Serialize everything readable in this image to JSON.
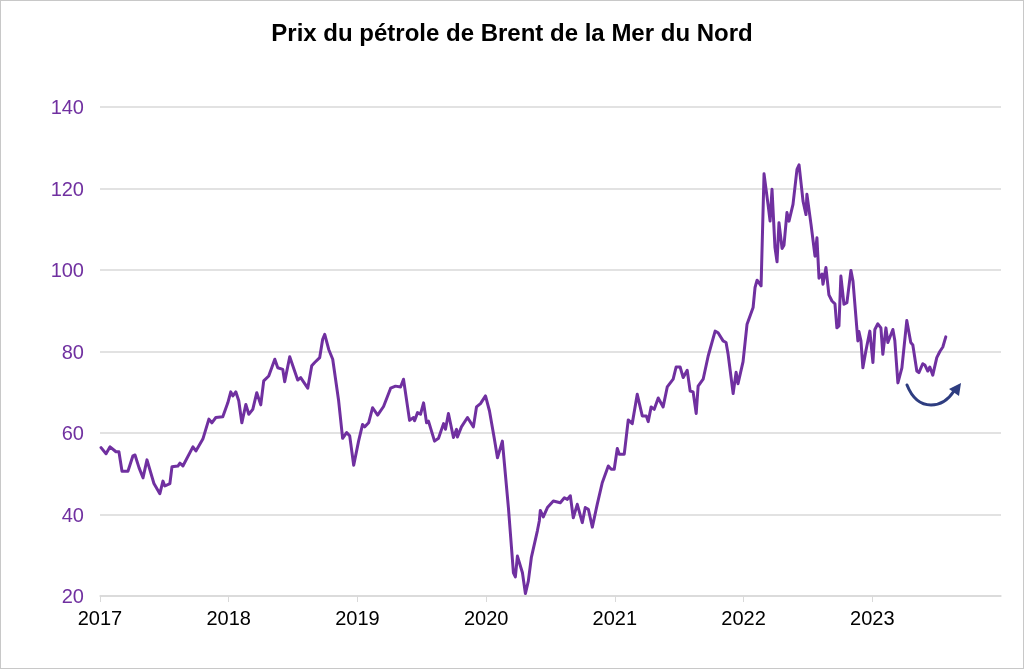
{
  "chart_data": {
    "type": "line",
    "title": "Prix du pétrole de Brent de la Mer du Nord",
    "x": [
      2017.008,
      2017.047,
      2017.078,
      2017.124,
      2017.147,
      2017.171,
      2017.217,
      2017.256,
      2017.272,
      2017.303,
      2017.334,
      2017.365,
      2017.419,
      2017.465,
      2017.489,
      2017.504,
      2017.543,
      2017.559,
      2017.605,
      2017.621,
      2017.644,
      2017.722,
      2017.745,
      2017.799,
      2017.846,
      2017.869,
      2017.9,
      2017.954,
      2017.993,
      2018.016,
      2018.032,
      2018.055,
      2018.078,
      2018.102,
      2018.133,
      2018.156,
      2018.187,
      2018.218,
      2018.249,
      2018.272,
      2018.311,
      2018.358,
      2018.381,
      2018.42,
      2018.435,
      2018.474,
      2018.536,
      2018.559,
      2018.614,
      2018.645,
      2018.668,
      2018.707,
      2018.73,
      2018.746,
      2018.777,
      2018.808,
      2018.854,
      2018.885,
      2018.916,
      2018.94,
      2018.971,
      2019.009,
      2019.04,
      2019.056,
      2019.087,
      2019.118,
      2019.157,
      2019.203,
      2019.258,
      2019.296,
      2019.335,
      2019.358,
      2019.405,
      2019.436,
      2019.444,
      2019.467,
      2019.49,
      2019.514,
      2019.537,
      2019.552,
      2019.599,
      2019.63,
      2019.669,
      2019.684,
      2019.707,
      2019.746,
      2019.77,
      2019.777,
      2019.808,
      2019.855,
      2019.901,
      2019.925,
      2019.956,
      2019.995,
      2020.026,
      2020.064,
      2020.088,
      2020.126,
      2020.173,
      2020.212,
      2020.227,
      2020.243,
      2020.282,
      2020.305,
      2020.328,
      2020.351,
      2020.398,
      2020.413,
      2020.421,
      2020.444,
      2020.476,
      2020.522,
      2020.576,
      2020.608,
      2020.631,
      2020.654,
      2020.677,
      2020.708,
      2020.747,
      2020.77,
      2020.794,
      2020.825,
      2020.863,
      2020.902,
      2020.949,
      2020.972,
      2020.995,
      2021.019,
      2021.034,
      2021.073,
      2021.104,
      2021.135,
      2021.174,
      2021.213,
      2021.244,
      2021.259,
      2021.282,
      2021.306,
      2021.337,
      2021.375,
      2021.407,
      2021.453,
      2021.476,
      2021.507,
      2021.531,
      2021.562,
      2021.585,
      2021.608,
      2021.632,
      2021.647,
      2021.686,
      2021.725,
      2021.779,
      2021.802,
      2021.841,
      2021.864,
      2021.88,
      2021.919,
      2021.942,
      2021.957,
      2021.996,
      2022.027,
      2022.074,
      2022.089,
      2022.105,
      2022.136,
      2022.159,
      2022.19,
      2022.206,
      2022.221,
      2022.244,
      2022.26,
      2022.275,
      2022.299,
      2022.314,
      2022.337,
      2022.353,
      2022.384,
      2022.415,
      2022.431,
      2022.462,
      2022.485,
      2022.492,
      2022.524,
      2022.555,
      2022.57,
      2022.586,
      2022.609,
      2022.617,
      2022.64,
      2022.663,
      2022.687,
      2022.71,
      2022.725,
      2022.741,
      2022.756,
      2022.78,
      2022.803,
      2022.834,
      2022.85,
      2022.888,
      2022.896,
      2022.912,
      2022.927,
      2022.95,
      2022.981,
      2023.005,
      2023.02,
      2023.043,
      2023.067,
      2023.082,
      2023.106,
      2023.121,
      2023.16,
      2023.175,
      2023.199,
      2023.23,
      2023.268,
      2023.299,
      2023.315,
      2023.346,
      2023.362,
      2023.392,
      2023.408,
      2023.431,
      2023.447,
      2023.47,
      2023.501,
      2023.525,
      2023.548,
      2023.571
    ],
    "values": [
      56.4,
      54.9,
      56.6,
      55.4,
      55.4,
      50.6,
      50.6,
      54.4,
      54.6,
      51.5,
      49.0,
      53.4,
      47.6,
      45.1,
      48.2,
      47.0,
      47.6,
      51.7,
      51.9,
      52.6,
      51.9,
      56.6,
      55.6,
      58.5,
      63.4,
      62.5,
      63.8,
      64.0,
      67.4,
      70.1,
      69.1,
      70.1,
      67.9,
      62.5,
      67.0,
      64.6,
      65.8,
      69.9,
      66.9,
      72.8,
      74.0,
      78.1,
      76.0,
      75.6,
      72.6,
      78.7,
      73.0,
      73.6,
      71.0,
      76.5,
      77.3,
      78.5,
      83.0,
      84.2,
      80.5,
      78.1,
      67.9,
      58.7,
      60.1,
      59.3,
      52.1,
      58.0,
      62.1,
      61.5,
      62.5,
      66.2,
      64.4,
      66.5,
      71.0,
      71.5,
      71.3,
      73.2,
      63.1,
      63.8,
      63.0,
      65.0,
      64.6,
      67.4,
      62.5,
      62.9,
      58.0,
      58.7,
      62.3,
      60.9,
      64.8,
      58.9,
      60.9,
      59.0,
      61.5,
      63.8,
      61.5,
      66.4,
      67.2,
      69.1,
      65.4,
      58.5,
      53.9,
      58.0,
      41.7,
      25.7,
      24.7,
      29.8,
      25.7,
      20.6,
      23.7,
      29.4,
      36.0,
      38.4,
      41.0,
      39.4,
      41.7,
      43.3,
      42.9,
      44.1,
      43.7,
      44.6,
      39.2,
      42.5,
      38.0,
      41.7,
      41.3,
      36.9,
      42.5,
      47.8,
      51.9,
      51.1,
      51.1,
      56.2,
      54.8,
      54.8,
      63.2,
      62.3,
      69.5,
      64.2,
      64.2,
      62.8,
      66.4,
      65.8,
      68.6,
      66.4,
      71.3,
      73.2,
      76.2,
      76.2,
      73.6,
      75.4,
      70.3,
      70.1,
      64.8,
      71.5,
      73.2,
      78.9,
      85.0,
      84.6,
      82.6,
      82.2,
      79.3,
      69.7,
      74.9,
      72.1,
      77.5,
      86.7,
      90.8,
      95.7,
      97.5,
      96.1,
      123.6,
      116.1,
      112.0,
      119.8,
      105.5,
      102.0,
      111.6,
      105.3,
      106.1,
      114.1,
      112.0,
      116.1,
      124.7,
      125.8,
      116.9,
      113.6,
      118.6,
      111.2,
      103.4,
      107.9,
      98.0,
      99.0,
      96.5,
      100.6,
      93.9,
      92.4,
      91.7,
      85.8,
      86.3,
      98.5,
      91.6,
      92.0,
      99.9,
      97.3,
      82.6,
      84.9,
      82.6,
      76.0,
      80.1,
      85.0,
      77.3,
      85.4,
      86.8,
      85.8,
      79.3,
      85.8,
      82.2,
      85.4,
      82.7,
      72.3,
      76.0,
      87.6,
      82.2,
      81.6,
      75.2,
      74.8,
      77.0,
      76.7,
      75.2,
      76.2,
      74.2,
      78.5,
      80.0,
      81.1,
      83.6
    ],
    "color": "#7030a0",
    "xlim": [
      2017,
      2024
    ],
    "xticks": [
      2017,
      2018,
      2019,
      2020,
      2021,
      2022,
      2023
    ],
    "ylim": [
      20,
      140
    ],
    "yticks": [
      20,
      40,
      60,
      80,
      100,
      120,
      140
    ],
    "grid": "y",
    "marker": "none",
    "line_style": "solid"
  }
}
